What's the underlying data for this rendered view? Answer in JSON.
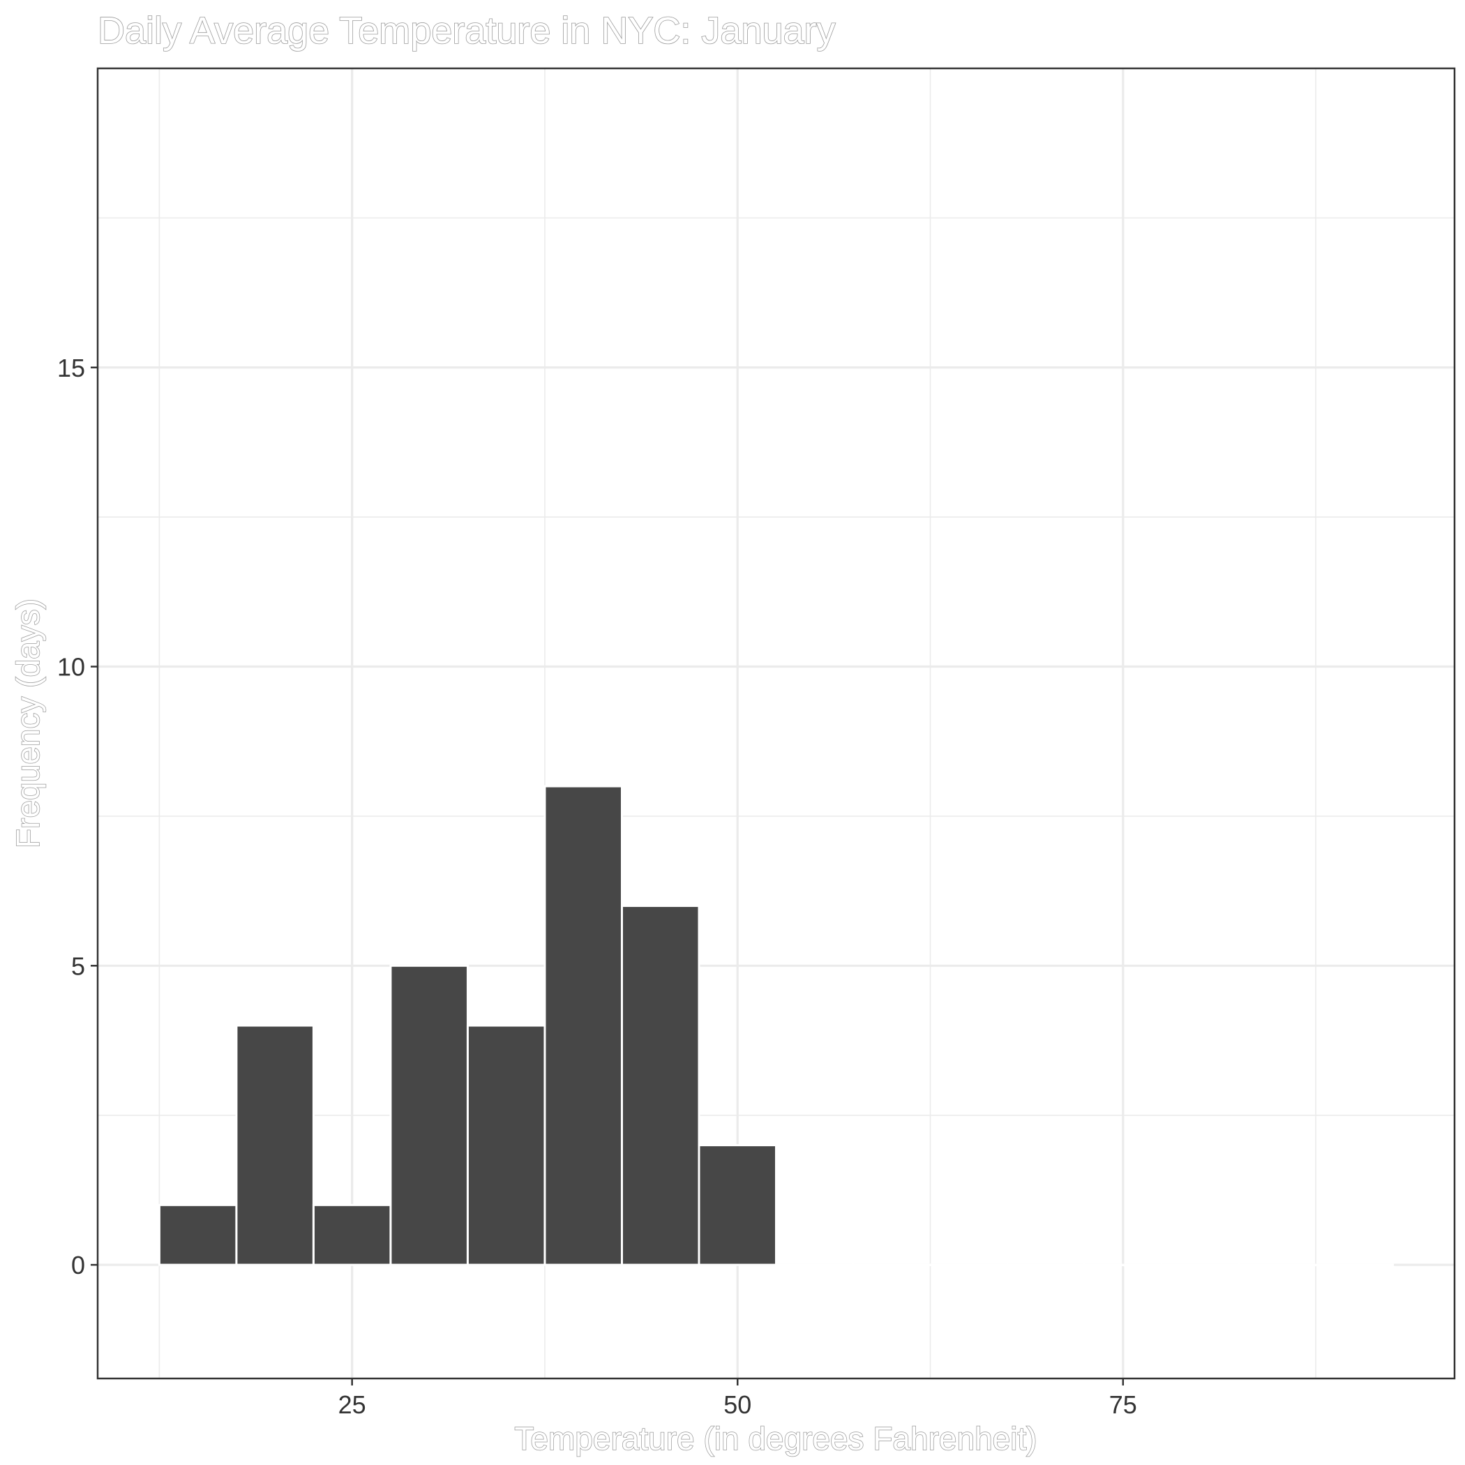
{
  "chart_data": {
    "type": "bar",
    "title": "Daily Average Temperature in NYC: January",
    "xlabel": "Temperature (in degrees Fahrenheit)",
    "ylabel": "Frequency (days)",
    "bin_width": 5,
    "bins": [
      {
        "x0": 12.5,
        "x1": 17.5,
        "count": 1
      },
      {
        "x0": 17.5,
        "x1": 22.5,
        "count": 4
      },
      {
        "x0": 22.5,
        "x1": 27.5,
        "count": 1
      },
      {
        "x0": 27.5,
        "x1": 32.5,
        "count": 5
      },
      {
        "x0": 32.5,
        "x1": 37.5,
        "count": 4
      },
      {
        "x0": 37.5,
        "x1": 42.5,
        "count": 8
      },
      {
        "x0": 42.5,
        "x1": 47.5,
        "count": 6
      },
      {
        "x0": 47.5,
        "x1": 52.5,
        "count": 2
      },
      {
        "x0": 52.5,
        "x1": 57.5,
        "count": 0
      },
      {
        "x0": 57.5,
        "x1": 62.5,
        "count": 0
      },
      {
        "x0": 62.5,
        "x1": 67.5,
        "count": 0
      },
      {
        "x0": 67.5,
        "x1": 72.5,
        "count": 0
      },
      {
        "x0": 72.5,
        "x1": 77.5,
        "count": 0
      },
      {
        "x0": 77.5,
        "x1": 82.5,
        "count": 0
      },
      {
        "x0": 82.5,
        "x1": 87.5,
        "count": 0
      },
      {
        "x0": 87.5,
        "x1": 92.5,
        "count": 0
      }
    ],
    "xlim": [
      8.5,
      96.5
    ],
    "ylim": [
      -1.9,
      20
    ],
    "x_ticks": [
      25,
      50,
      75
    ],
    "y_ticks": [
      0,
      5,
      10,
      15
    ],
    "x_minor_gridlines": [
      12.5,
      37.5,
      62.5,
      87.5
    ],
    "y_minor_gridlines": [
      2.5,
      7.5,
      12.5,
      17.5
    ],
    "grid": true,
    "bar_color": "#474747",
    "bar_edge_color": "#ffffff",
    "grid_color": "#ebebeb",
    "panel_border_color": "#333333"
  }
}
